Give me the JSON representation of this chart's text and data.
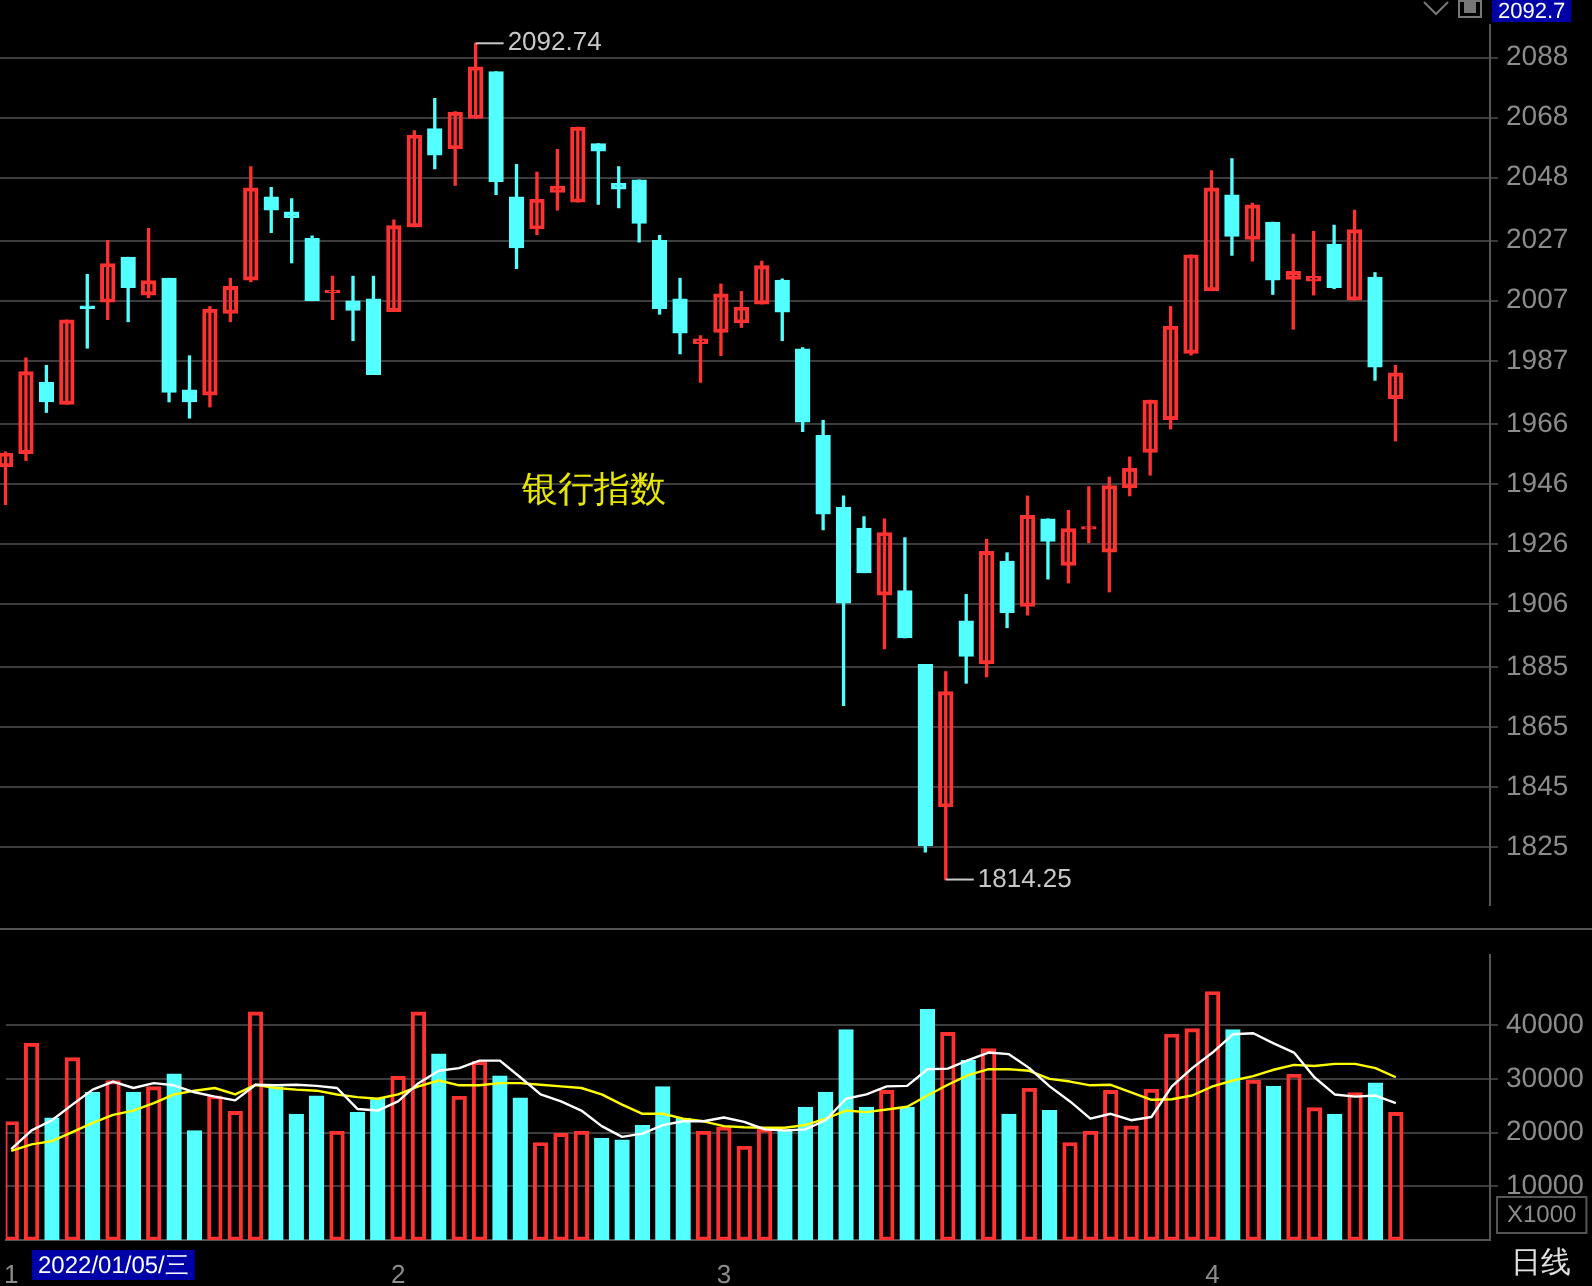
{
  "chart_data": [
    {
      "type": "candlestick",
      "title": "银行指数",
      "categories": [
        "1",
        null,
        null,
        null,
        null,
        null,
        null,
        null,
        null,
        null,
        null,
        null,
        null,
        null,
        null,
        null,
        null,
        null,
        null,
        "2",
        null,
        null,
        null,
        null,
        null,
        null,
        null,
        null,
        null,
        null,
        null,
        null,
        null,
        null,
        null,
        "3",
        null,
        null,
        null,
        null,
        null,
        null,
        null,
        null,
        null,
        null,
        null,
        null,
        null,
        null,
        null,
        null,
        null,
        null,
        null,
        null,
        null,
        null,
        null,
        "4",
        null,
        null,
        null,
        null,
        null,
        null,
        null,
        null,
        null
      ],
      "ohlc": [
        [
          1951.8,
          1956.6,
          1939.2,
          1956.2
        ],
        [
          1956.2,
          1987.9,
          1953.9,
          1983.3
        ],
        [
          1979.7,
          1985.4,
          1969.9,
          1973.4
        ],
        [
          1972.6,
          2000.5,
          1972.6,
          2000.5
        ],
        [
          2005.0,
          2015.7,
          1991.3,
          2004.5
        ],
        [
          2006.6,
          2027.0,
          2000.8,
          2019.3
        ],
        [
          2021.4,
          2021.4,
          2000.1,
          2011.5
        ],
        [
          2009.0,
          2031.0,
          2008.1,
          2013.6
        ],
        [
          2014.4,
          2014.4,
          1973.4,
          1976.6
        ],
        [
          1977.2,
          1988.6,
          1968.0,
          1973.4
        ],
        [
          1975.7,
          2005.0,
          1971.7,
          2004.1
        ],
        [
          2002.9,
          2014.4,
          2000.1,
          2011.7
        ],
        [
          2014.0,
          2051.6,
          2013.4,
          2044.5
        ],
        [
          2041.5,
          2044.7,
          2029.8,
          2037.3
        ],
        [
          2036.5,
          2040.9,
          2019.7,
          2034.8
        ],
        [
          2027.7,
          2028.5,
          2007.1,
          2007.1
        ],
        [
          2009.8,
          2015.1,
          2000.8,
          2010.4
        ],
        [
          2006.9,
          2015.1,
          1993.8,
          2003.9
        ],
        [
          2007.5,
          2015.1,
          1982.5,
          1982.5
        ],
        [
          2003.5,
          2033.8,
          2003.5,
          2031.9
        ],
        [
          2031.7,
          2063.6,
          2031.7,
          2062.1
        ],
        [
          2064.2,
          2074.3,
          2051.0,
          2055.6
        ],
        [
          2057.7,
          2069.9,
          2045.5,
          2069.7
        ],
        [
          2067.8,
          2092.74,
          2067.8,
          2084.8
        ],
        [
          2083.2,
          2083.2,
          2042.4,
          2046.8
        ],
        [
          2041.5,
          2052.3,
          2017.8,
          2024.7
        ],
        [
          2031.0,
          2049.7,
          2029.1,
          2040.7
        ],
        [
          2043.2,
          2057.3,
          2037.3,
          2045.1
        ],
        [
          2039.9,
          2064.7,
          2039.9,
          2064.7
        ],
        [
          2059.2,
          2059.2,
          2039.2,
          2056.9
        ],
        [
          2046.0,
          2051.6,
          2038.0,
          2044.3
        ],
        [
          2047.2,
          2047.2,
          2026.6,
          2032.9
        ],
        [
          2027.0,
          2028.7,
          2002.6,
          2004.5
        ],
        [
          2007.5,
          2014.4,
          1989.4,
          1996.3
        ],
        [
          1992.8,
          1995.3,
          1979.9,
          1994.2
        ],
        [
          1996.6,
          2012.5,
          1988.8,
          2009.2
        ],
        [
          1999.7,
          2010.0,
          1998.2,
          2004.8
        ],
        [
          2006.0,
          2020.1,
          2006.0,
          2018.6
        ],
        [
          2013.8,
          2014.2,
          1993.8,
          2003.3
        ],
        [
          1990.9,
          1991.3,
          1963.5,
          1966.7
        ],
        [
          1962.1,
          1967.1,
          1930.8,
          1936.0
        ],
        [
          1938.1,
          1941.9,
          1872.3,
          1906.4
        ],
        [
          1931.2,
          1935.0,
          1916.5,
          1916.5
        ],
        [
          1909.1,
          1934.3,
          1891.2,
          1929.7
        ],
        [
          1910.4,
          1928.0,
          1894.8,
          1894.8
        ],
        [
          1885.8,
          1885.8,
          1823.5,
          1825.6
        ],
        [
          1838.5,
          1883.4,
          1814.25,
          1876.7
        ],
        [
          1900.3,
          1909.1,
          1879.7,
          1888.7
        ],
        [
          1886.2,
          1927.4,
          1881.8,
          1923.4
        ],
        [
          1920.2,
          1923.0,
          1898.2,
          1903.2
        ],
        [
          1905.3,
          1941.9,
          1902.4,
          1935.4
        ],
        [
          1934.3,
          1934.3,
          1914.4,
          1927.0
        ],
        [
          1919.0,
          1937.1,
          1913.1,
          1931.0
        ],
        [
          1931.0,
          1945.0,
          1926.5,
          1931.6
        ],
        [
          1923.4,
          1948.2,
          1910.1,
          1945.3
        ],
        [
          1944.8,
          1954.9,
          1942.1,
          1951.1
        ],
        [
          1956.6,
          1973.8,
          1949.0,
          1973.8
        ],
        [
          1967.5,
          2005.0,
          1964.4,
          1998.4
        ],
        [
          1989.6,
          2022.2,
          1989.0,
          2022.2
        ],
        [
          2010.4,
          2050.2,
          2010.4,
          2044.5
        ],
        [
          2042.2,
          2054.2,
          2022.2,
          2028.5
        ],
        [
          2027.5,
          2039.4,
          2020.3,
          2038.8
        ],
        [
          2033.1,
          2033.1,
          2009.2,
          2014.0
        ],
        [
          2014.2,
          2029.1,
          1997.6,
          2016.7
        ],
        [
          2013.6,
          2030.0,
          2009.0,
          2015.1
        ],
        [
          2025.8,
          2032.1,
          2011.1,
          2011.5
        ],
        [
          2007.3,
          2037.1,
          2007.3,
          2030.6
        ],
        [
          2014.8,
          2016.3,
          1980.6,
          1985.0
        ],
        [
          1974.5,
          1985.4,
          1960.4,
          1982.9
        ]
      ],
      "colors": [
        "#ff3232",
        "#ff3232",
        "#54ffff",
        "#ff3232",
        "#54ffff",
        "#ff3232",
        "#54ffff",
        "#ff3232",
        "#54ffff",
        "#54ffff",
        "#ff3232",
        "#ff3232",
        "#ff3232",
        "#54ffff",
        "#54ffff",
        "#54ffff",
        "#ff3232",
        "#54ffff",
        "#54ffff",
        "#ff3232",
        "#ff3232",
        "#54ffff",
        "#ff3232",
        "#ff3232",
        "#54ffff",
        "#54ffff",
        "#ff3232",
        "#ff3232",
        "#ff3232",
        "#54ffff",
        "#54ffff",
        "#54ffff",
        "#54ffff",
        "#54ffff",
        "#ff3232",
        "#ff3232",
        "#ff3232",
        "#ff3232",
        "#54ffff",
        "#54ffff",
        "#54ffff",
        "#54ffff",
        "#54ffff",
        "#ff3232",
        "#54ffff",
        "#54ffff",
        "#ff3232",
        "#54ffff",
        "#ff3232",
        "#54ffff",
        "#ff3232",
        "#54ffff",
        "#ff3232",
        "#ff3232",
        "#ff3232",
        "#ff3232",
        "#ff3232",
        "#ff3232",
        "#ff3232",
        "#ff3232",
        "#54ffff",
        "#ff3232",
        "#54ffff",
        "#ff3232",
        "#ff3232",
        "#54ffff",
        "#ff3232",
        "#54ffff",
        "#ff3232"
      ],
      "ylim": [
        1805.7,
        2098.9
      ],
      "yticks": [
        1825,
        1845,
        1865,
        1885,
        1906,
        1926,
        1946,
        1966,
        1987,
        2007,
        2027,
        2048,
        2068,
        2088
      ],
      "grid": "y",
      "tick_labels": "y",
      "annotations": [
        "2092.74",
        "1814.25",
        "2092.7"
      ]
    },
    {
      "type": "bar",
      "categories": [
        "1",
        null,
        null,
        null,
        null,
        null,
        null,
        null,
        null,
        null,
        null,
        null,
        null,
        null,
        null,
        null,
        null,
        null,
        null,
        "2",
        null,
        null,
        null,
        null,
        null,
        null,
        null,
        null,
        null,
        null,
        null,
        null,
        null,
        null,
        null,
        "3",
        null,
        null,
        null,
        null,
        null,
        null,
        null,
        null,
        null,
        null,
        null,
        null,
        null,
        null,
        null,
        null,
        null,
        null,
        null,
        null,
        null,
        null,
        null,
        "4",
        null,
        null,
        null,
        null,
        null,
        null,
        null,
        null,
        null
      ],
      "series": [
        {
          "values": [
            22000,
            36600,
            22700,
            33900,
            27500,
            29600,
            27500,
            28500,
            30900,
            20300,
            26800,
            23900,
            42400,
            28500,
            23400,
            26800,
            20200,
            23700,
            26300,
            30400,
            42400,
            34600,
            26700,
            33200,
            30500,
            26400,
            18100,
            19800,
            20200,
            18900,
            18600,
            21300,
            28500,
            22600,
            20200,
            21000,
            17400,
            20600,
            20300,
            24700,
            27500,
            39100,
            24700,
            27800,
            24700,
            42900,
            38600,
            33400,
            35600,
            23400,
            28200,
            24100,
            18100,
            20200,
            27800,
            21200,
            28000,
            38300,
            39300,
            46200,
            39100,
            29700,
            28600,
            30800,
            24600,
            23400,
            27400,
            29200,
            23700
          ],
          "colors": [
            "#ff3232",
            "#ff3232",
            "#54ffff",
            "#ff3232",
            "#54ffff",
            "#ff3232",
            "#54ffff",
            "#ff3232",
            "#54ffff",
            "#54ffff",
            "#ff3232",
            "#ff3232",
            "#ff3232",
            "#54ffff",
            "#54ffff",
            "#54ffff",
            "#ff3232",
            "#54ffff",
            "#54ffff",
            "#ff3232",
            "#ff3232",
            "#54ffff",
            "#ff3232",
            "#ff3232",
            "#54ffff",
            "#54ffff",
            "#ff3232",
            "#ff3232",
            "#ff3232",
            "#54ffff",
            "#54ffff",
            "#54ffff",
            "#54ffff",
            "#54ffff",
            "#ff3232",
            "#ff3232",
            "#ff3232",
            "#ff3232",
            "#54ffff",
            "#54ffff",
            "#54ffff",
            "#54ffff",
            "#54ffff",
            "#ff3232",
            "#54ffff",
            "#54ffff",
            "#ff3232",
            "#54ffff",
            "#ff3232",
            "#54ffff",
            "#ff3232",
            "#54ffff",
            "#ff3232",
            "#ff3232",
            "#ff3232",
            "#ff3232",
            "#ff3232",
            "#ff3232",
            "#ff3232",
            "#ff3232",
            "#54ffff",
            "#ff3232",
            "#54ffff",
            "#ff3232",
            "#ff3232",
            "#54ffff",
            "#ff3232",
            "#54ffff",
            "#ff3232"
          ]
        },
        {
          "type": "line",
          "color": "#ffffff",
          "values": [
            16900,
            20400,
            22300,
            25200,
            28000,
            29500,
            28300,
            29200,
            28800,
            27500,
            26700,
            26000,
            28900,
            28800,
            28900,
            28700,
            28300,
            24400,
            24100,
            25800,
            29200,
            31500,
            32000,
            33400,
            33400,
            30300,
            27100,
            25800,
            24100,
            21200,
            19200,
            19800,
            21400,
            22100,
            22100,
            22800,
            22000,
            20600,
            20400,
            20600,
            22300,
            26300,
            27100,
            28600,
            28700,
            31800,
            31900,
            33500,
            34900,
            34600,
            32000,
            28600,
            25800,
            22600,
            23500,
            22300,
            22900,
            28600,
            32000,
            34900,
            38300,
            38500,
            36600,
            34900,
            30300,
            27100,
            26700,
            26900,
            25500
          ]
        },
        {
          "type": "line",
          "color": "#ffff00",
          "values": [
            16600,
            17800,
            18400,
            20100,
            21800,
            23300,
            24100,
            25500,
            27100,
            27800,
            28300,
            27100,
            28900,
            28300,
            28000,
            27800,
            27100,
            26600,
            26300,
            27100,
            28600,
            29700,
            28800,
            28800,
            29200,
            29200,
            28900,
            28600,
            28300,
            27100,
            25200,
            23500,
            23500,
            22600,
            22100,
            21200,
            21000,
            20900,
            20900,
            21400,
            22600,
            24100,
            23800,
            24300,
            24800,
            26900,
            28900,
            30700,
            31800,
            31800,
            31500,
            30000,
            29500,
            28800,
            28900,
            27500,
            26100,
            26200,
            26900,
            28600,
            29700,
            30500,
            31700,
            32600,
            32400,
            32800,
            32800,
            32000,
            30300
          ]
        }
      ],
      "ylim": [
        0,
        53100
      ],
      "yticks": [
        10000,
        20000,
        30000,
        40000
      ],
      "grid": "y",
      "marker": "none",
      "annotations": [
        "X1000",
        "2022/01/05/三",
        "日线"
      ]
    }
  ]
}
